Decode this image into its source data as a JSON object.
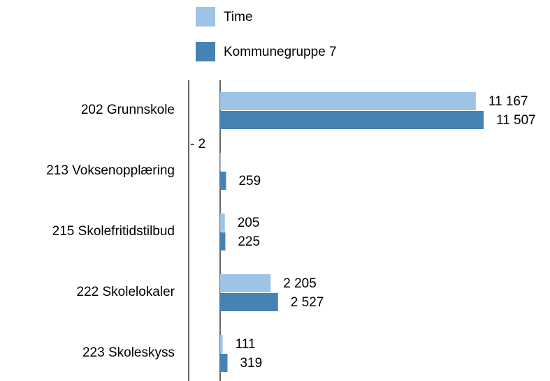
{
  "chart_data": {
    "type": "bar",
    "orientation": "horizontal",
    "categories": [
      "202 Grunnskole",
      "213 Voksenopplæring",
      "215 Skolefritidstilbud",
      "222 Skolelokaler",
      "223 Skoleskyss"
    ],
    "series": [
      {
        "name": "Time",
        "color": "#9dc3e6",
        "values": [
          11167,
          -2,
          205,
          2205,
          111
        ],
        "value_labels": [
          "11 167",
          "- 2",
          "205",
          "2 205",
          "111"
        ]
      },
      {
        "name": "Kommunegruppe 7",
        "color": "#4682b4",
        "values": [
          11507,
          259,
          225,
          2527,
          319
        ],
        "value_labels": [
          "11 507",
          "259",
          "225",
          "2 527",
          "319"
        ]
      }
    ]
  }
}
